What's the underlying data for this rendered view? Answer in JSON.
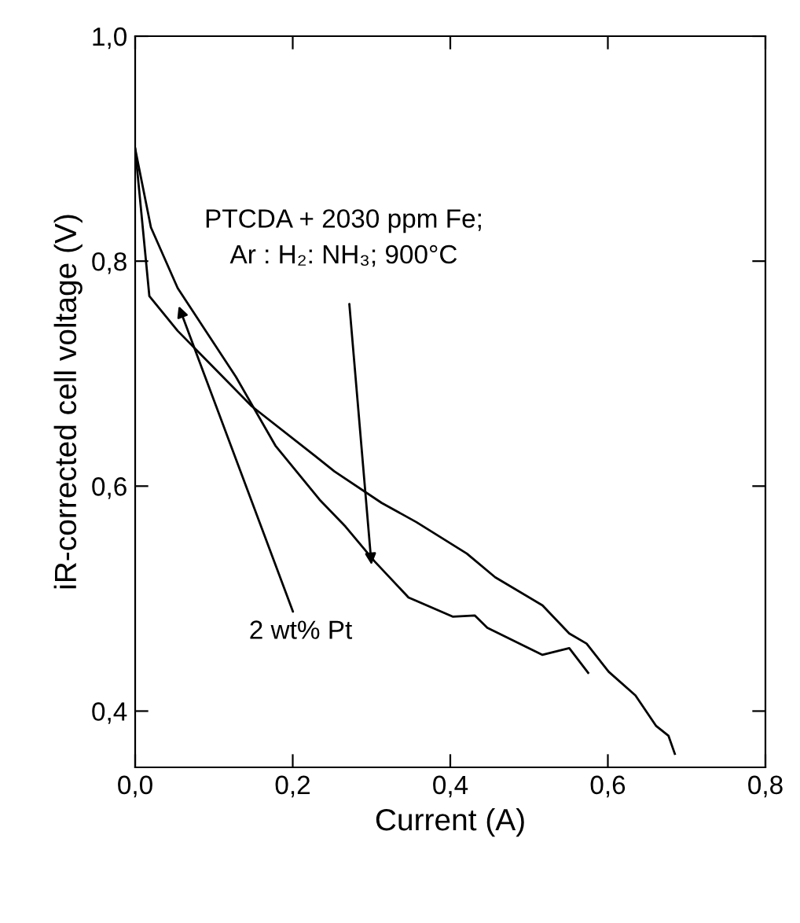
{
  "chart_data": {
    "type": "line",
    "xlabel": "Current (A)",
    "ylabel": "iR-corrected cell voltage (V)",
    "xlim": [
      0,
      0.8
    ],
    "ylim": [
      0.35,
      1.0
    ],
    "xticks": [
      {
        "value": 0,
        "label": "0,0"
      },
      {
        "value": 0.2,
        "label": "0,2"
      },
      {
        "value": 0.4,
        "label": "0,4"
      },
      {
        "value": 0.6,
        "label": "0,6"
      },
      {
        "value": 0.8,
        "label": "0,8"
      }
    ],
    "yticks": [
      {
        "value": 0.4,
        "label": "0,4"
      },
      {
        "value": 0.6,
        "label": "0,6"
      },
      {
        "value": 0.8,
        "label": "0,8"
      },
      {
        "value": 1.0,
        "label": "1,0"
      }
    ],
    "grid": false,
    "legend": false,
    "marker": "none",
    "line_style": "solid",
    "series": [
      {
        "color": "#000000",
        "x": [
          0,
          0.02,
          0.054,
          0.128,
          0.178,
          0.234,
          0.267,
          0.304,
          0.347,
          0.403,
          0.431,
          0.447,
          0.517,
          0.551,
          0.575
        ],
        "values": [
          0.9,
          0.83,
          0.776,
          0.697,
          0.636,
          0.588,
          0.564,
          0.533,
          0.501,
          0.484,
          0.485,
          0.474,
          0.45,
          0.456,
          0.434
        ]
      },
      {
        "color": "#000000",
        "x": [
          0,
          0.018,
          0.054,
          0.148,
          0.228,
          0.253,
          0.313,
          0.357,
          0.421,
          0.457,
          0.517,
          0.551,
          0.573,
          0.601,
          0.635,
          0.661,
          0.677,
          0.685
        ],
        "values": [
          0.9,
          0.769,
          0.738,
          0.671,
          0.627,
          0.613,
          0.585,
          0.568,
          0.54,
          0.519,
          0.494,
          0.469,
          0.46,
          0.435,
          0.414,
          0.387,
          0.378,
          0.362
        ]
      }
    ],
    "annotations": [
      "PTCDA + 2030 ppm Fe;\nAr : H₂: NH₃; 900°C",
      "2 wt% Pt"
    ]
  }
}
